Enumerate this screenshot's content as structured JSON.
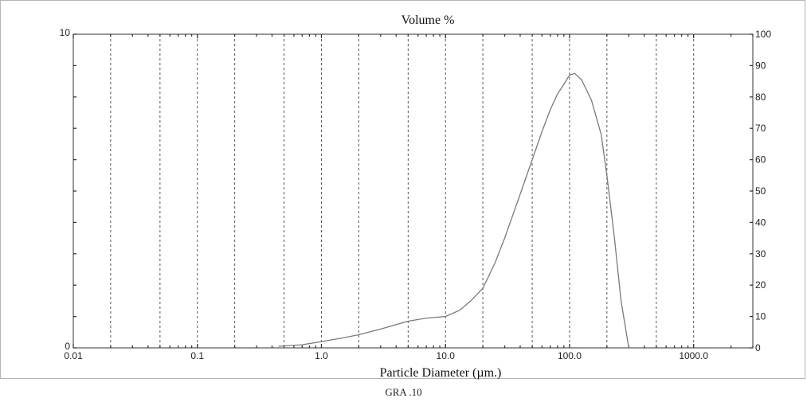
{
  "chart_data": {
    "type": "line",
    "title": "Volume %",
    "xlabel": "Particle Diameter (µm.)",
    "x_scale": "log",
    "xlim": [
      0.01,
      3000
    ],
    "ylim_left": [
      0,
      10
    ],
    "ylim_right": [
      0,
      100
    ],
    "left_tick_labels": [
      "10",
      "0"
    ],
    "right_tick_labels": [
      "100",
      "90",
      "80",
      "70",
      "60",
      "50",
      "40",
      "30",
      "20",
      "10",
      "0"
    ],
    "x_tick_labels": [
      {
        "value": 0.01,
        "label": "0.01"
      },
      {
        "value": 0.1,
        "label": "0.1"
      },
      {
        "value": 1,
        "label": "1.0"
      },
      {
        "value": 10,
        "label": "10.0"
      },
      {
        "value": 100,
        "label": "100.0"
      },
      {
        "value": 1000,
        "label": "1000.0"
      }
    ],
    "grid_x": [
      0.02,
      0.05,
      0.1,
      0.2,
      0.5,
      1,
      2,
      5,
      10,
      20,
      50,
      100,
      200,
      500,
      1000
    ],
    "grid": true,
    "series": [
      {
        "x": [
          0.45,
          0.7,
          1,
          1.5,
          2,
          3,
          5,
          7,
          10,
          13,
          16,
          20,
          25,
          30,
          40,
          50,
          60,
          70,
          80,
          90,
          100,
          110,
          125,
          150,
          180,
          200,
          230,
          260,
          300
        ],
        "y": [
          0.05,
          0.1,
          0.2,
          0.32,
          0.42,
          0.6,
          0.85,
          0.95,
          1.0,
          1.2,
          1.5,
          1.9,
          2.7,
          3.5,
          4.9,
          6.0,
          6.9,
          7.6,
          8.1,
          8.4,
          8.7,
          8.75,
          8.55,
          7.9,
          6.8,
          5.5,
          3.5,
          1.5,
          0.0
        ]
      }
    ]
  },
  "caption": "GRA .10"
}
